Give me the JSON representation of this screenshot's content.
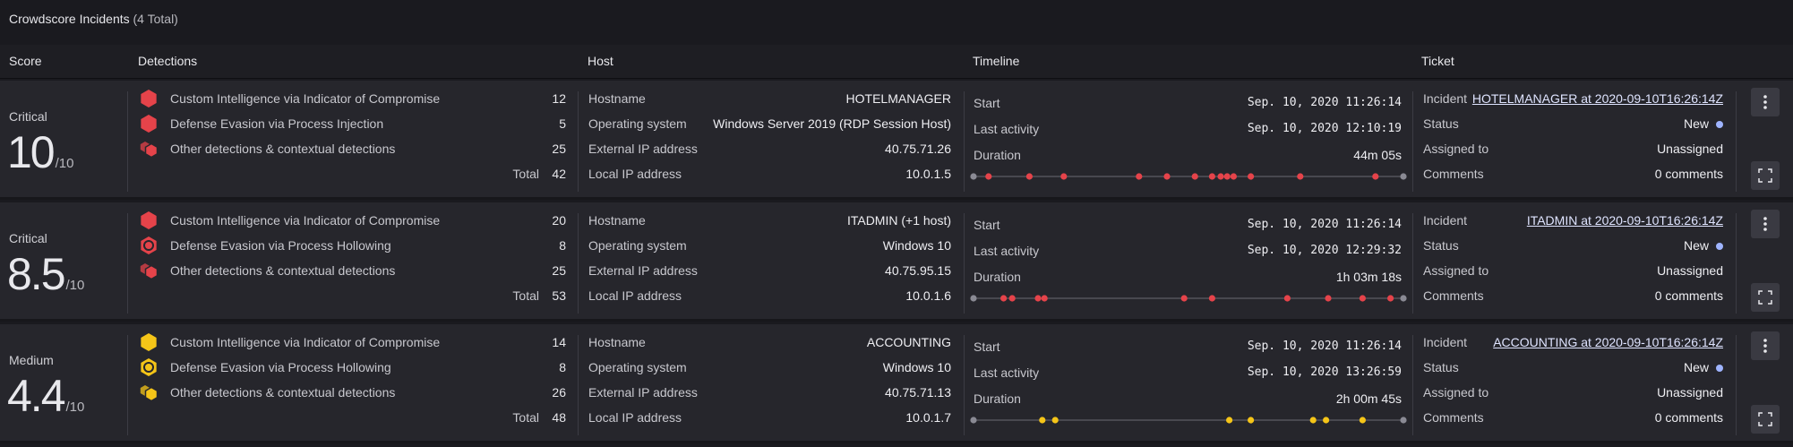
{
  "panel": {
    "title": "Crowdscore Incidents",
    "count": "(4 Total)"
  },
  "columns": {
    "score": "Score",
    "detections": "Detections",
    "host": "Host",
    "timeline": "Timeline",
    "ticket": "Ticket"
  },
  "labels": {
    "hostname": "Hostname",
    "os": "Operating system",
    "ext_ip": "External IP address",
    "local_ip": "Local IP address",
    "start": "Start",
    "last_activity": "Last activity",
    "duration": "Duration",
    "incident": "Incident",
    "status": "Status",
    "assigned": "Assigned to",
    "comments": "Comments",
    "total": "Total"
  },
  "colors": {
    "critical": "#e5434a",
    "medium": "#f5c518",
    "timeline_endpoint": "#8a8a94",
    "status_new": "#9fb4ff"
  },
  "incidents": [
    {
      "severity": "Critical",
      "score": "10",
      "score_denom": "/10",
      "detections": [
        {
          "icon": "hexagon-icon",
          "label": "Custom Intelligence via Indicator of Compromise",
          "count": "12"
        },
        {
          "icon": "hexagon-icon",
          "label": "Defense Evasion via Process Injection",
          "count": "5"
        },
        {
          "icon": "stacked-hexagons-icon",
          "label": "Other detections & contextual detections",
          "count": "25"
        }
      ],
      "total": "42",
      "host": {
        "hostname": "HOTELMANAGER",
        "os": "Windows Server 2019 (RDP Session Host)",
        "ext_ip": "40.75.71.26",
        "local_ip": "10.0.1.5"
      },
      "timeline": {
        "start": "Sep. 10, 2020 11:26:14",
        "last_activity": "Sep. 10, 2020 12:10:19",
        "duration": "44m 05s",
        "events": [
          0.035,
          0.13,
          0.21,
          0.385,
          0.45,
          0.515,
          0.555,
          0.575,
          0.59,
          0.605,
          0.645,
          0.76,
          0.935
        ]
      },
      "ticket": {
        "incident": "HOTELMANAGER at 2020-09-10T16:26:14Z",
        "status": "New",
        "assigned": "Unassigned",
        "comments": "0 comments"
      }
    },
    {
      "severity": "Critical",
      "score": "8.5",
      "score_denom": "/10",
      "detections": [
        {
          "icon": "hexagon-icon",
          "label": "Custom Intelligence via Indicator of Compromise",
          "count": "20"
        },
        {
          "icon": "hexagon-target-icon",
          "label": "Defense Evasion via Process Hollowing",
          "count": "8"
        },
        {
          "icon": "stacked-hexagons-icon",
          "label": "Other detections & contextual detections",
          "count": "25"
        }
      ],
      "total": "53",
      "host": {
        "hostname": "ITADMIN (+1 host)",
        "os": "Windows 10",
        "ext_ip": "40.75.95.15",
        "local_ip": "10.0.1.6"
      },
      "timeline": {
        "start": "Sep. 10, 2020 11:26:14",
        "last_activity": "Sep. 10, 2020 12:29:32",
        "duration": "1h 03m 18s",
        "events": [
          0.07,
          0.09,
          0.15,
          0.165,
          0.49,
          0.555,
          0.73,
          0.825,
          0.905,
          0.97
        ]
      },
      "ticket": {
        "incident": "ITADMIN at 2020-09-10T16:26:14Z",
        "status": "New",
        "assigned": "Unassigned",
        "comments": "0 comments"
      }
    },
    {
      "severity": "Medium",
      "score": "4.4",
      "score_denom": "/10",
      "detections": [
        {
          "icon": "hexagon-icon",
          "label": "Custom Intelligence via Indicator of Compromise",
          "count": "14"
        },
        {
          "icon": "hexagon-target-icon",
          "label": "Defense Evasion via Process Hollowing",
          "count": "8"
        },
        {
          "icon": "stacked-hexagons-icon",
          "label": "Other detections & contextual detections",
          "count": "26"
        }
      ],
      "total": "48",
      "host": {
        "hostname": "ACCOUNTING",
        "os": "Windows 10",
        "ext_ip": "40.75.71.13",
        "local_ip": "10.0.1.7"
      },
      "timeline": {
        "start": "Sep. 10, 2020 11:26:14",
        "last_activity": "Sep. 10, 2020 13:26:59",
        "duration": "2h 00m 45s",
        "events": [
          0.16,
          0.19,
          0.595,
          0.645,
          0.79,
          0.82,
          0.905
        ]
      },
      "ticket": {
        "incident": "ACCOUNTING at 2020-09-10T16:26:14Z",
        "status": "New",
        "assigned": "Unassigned",
        "comments": "0 comments"
      }
    }
  ]
}
